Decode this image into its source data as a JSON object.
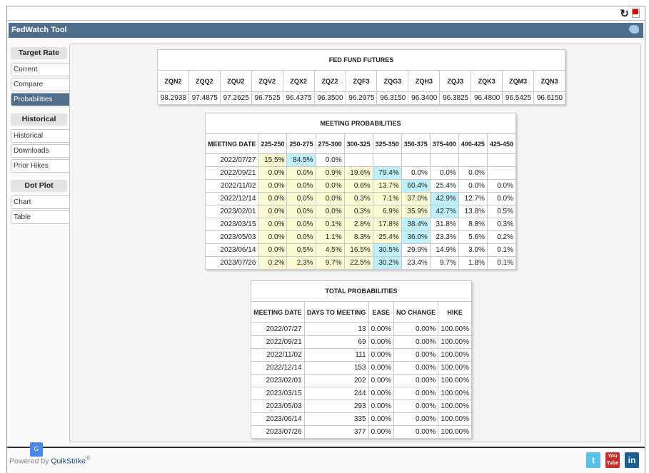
{
  "header": {
    "title": "FedWatch Tool"
  },
  "sidebar": {
    "sections": [
      {
        "title": "Target Rate",
        "items": [
          "Current",
          "Compare",
          "Probabilities"
        ]
      },
      {
        "title": "Historical",
        "items": [
          "Historical",
          "Downloads",
          "Prior Hikes"
        ]
      },
      {
        "title": "Dot Plot",
        "items": [
          "Chart",
          "Table"
        ]
      }
    ],
    "active": "Probabilities"
  },
  "futures": {
    "title": "FED FUND FUTURES",
    "headers": [
      "ZQN2",
      "ZQQ2",
      "ZQU2",
      "ZQV2",
      "ZQX2",
      "ZQZ2",
      "ZQF3",
      "ZQG3",
      "ZQH3",
      "ZQJ3",
      "ZQK3",
      "ZQM3",
      "ZQN3"
    ],
    "values": [
      "98.2938",
      "97.4875",
      "97.2625",
      "96.7525",
      "96.4375",
      "96.3500",
      "96.2975",
      "96.3150",
      "96.3400",
      "96.3825",
      "96.4800",
      "96.5425",
      "96.6150"
    ]
  },
  "meeting": {
    "title": "MEETING PROBABILITIES",
    "headers": [
      "MEETING DATE",
      "225-250",
      "250-275",
      "275-300",
      "300-325",
      "325-350",
      "350-375",
      "375-400",
      "400-425",
      "425-450"
    ],
    "rows": [
      {
        "date": "2022/07/27",
        "max": 1,
        "cells": [
          "15.5%",
          "84.5%",
          "0.0%",
          "",
          "",
          "",
          "",
          "",
          ""
        ]
      },
      {
        "date": "2022/09/21",
        "max": 4,
        "cells": [
          "0.0%",
          "0.0%",
          "0.9%",
          "19.6%",
          "79.4%",
          "0.0%",
          "0.0%",
          "0.0%",
          ""
        ]
      },
      {
        "date": "2022/11/02",
        "max": 5,
        "cells": [
          "0.0%",
          "0.0%",
          "0.0%",
          "0.6%",
          "13.7%",
          "60.4%",
          "25.4%",
          "0.0%",
          "0.0%"
        ]
      },
      {
        "date": "2022/12/14",
        "max": 6,
        "cells": [
          "0.0%",
          "0.0%",
          "0.0%",
          "0.3%",
          "7.1%",
          "37.0%",
          "42.9%",
          "12.7%",
          "0.0%"
        ]
      },
      {
        "date": "2023/02/01",
        "max": 6,
        "cells": [
          "0.0%",
          "0.0%",
          "0.0%",
          "0.3%",
          "6.9%",
          "35.9%",
          "42.7%",
          "13.8%",
          "0.5%"
        ]
      },
      {
        "date": "2023/03/15",
        "max": 5,
        "cells": [
          "0.0%",
          "0.0%",
          "0.1%",
          "2.8%",
          "17.8%",
          "38.4%",
          "31.8%",
          "8.8%",
          "0.3%"
        ]
      },
      {
        "date": "2023/05/03",
        "max": 5,
        "cells": [
          "0.0%",
          "0.0%",
          "1.1%",
          "8.3%",
          "25.4%",
          "36.0%",
          "23.3%",
          "5.6%",
          "0.2%"
        ]
      },
      {
        "date": "2023/06/14",
        "max": 4,
        "cells": [
          "0.0%",
          "0.5%",
          "4.5%",
          "16.5%",
          "30.5%",
          "29.9%",
          "14.9%",
          "3.0%",
          "0.1%"
        ]
      },
      {
        "date": "2023/07/26",
        "max": 4,
        "cells": [
          "0.2%",
          "2.3%",
          "9.7%",
          "22.5%",
          "30.2%",
          "23.4%",
          "9.7%",
          "1.8%",
          "0.1%"
        ]
      }
    ]
  },
  "total": {
    "title": "TOTAL PROBABILITIES",
    "headers": [
      "MEETING DATE",
      "DAYS TO MEETING",
      "EASE",
      "NO CHANGE",
      "HIKE"
    ],
    "rows": [
      [
        "2022/07/27",
        "13",
        "0.00%",
        "0.00%",
        "100.00%"
      ],
      [
        "2022/09/21",
        "69",
        "0.00%",
        "0.00%",
        "100.00%"
      ],
      [
        "2022/11/02",
        "111",
        "0.00%",
        "0.00%",
        "100.00%"
      ],
      [
        "2022/12/14",
        "153",
        "0.00%",
        "0.00%",
        "100.00%"
      ],
      [
        "2023/02/01",
        "202",
        "0.00%",
        "0.00%",
        "100.00%"
      ],
      [
        "2023/03/15",
        "244",
        "0.00%",
        "0.00%",
        "100.00%"
      ],
      [
        "2023/05/03",
        "293",
        "0.00%",
        "0.00%",
        "100.00%"
      ],
      [
        "2023/06/14",
        "335",
        "0.00%",
        "0.00%",
        "100.00%"
      ],
      [
        "2023/07/26",
        "377",
        "0.00%",
        "0.00%",
        "100.00%"
      ]
    ]
  },
  "footer": {
    "powered": "Powered by ",
    "brand": "QuikStrike",
    "reg": "®",
    "youtube": "You Tube",
    "linkedin": "in"
  }
}
